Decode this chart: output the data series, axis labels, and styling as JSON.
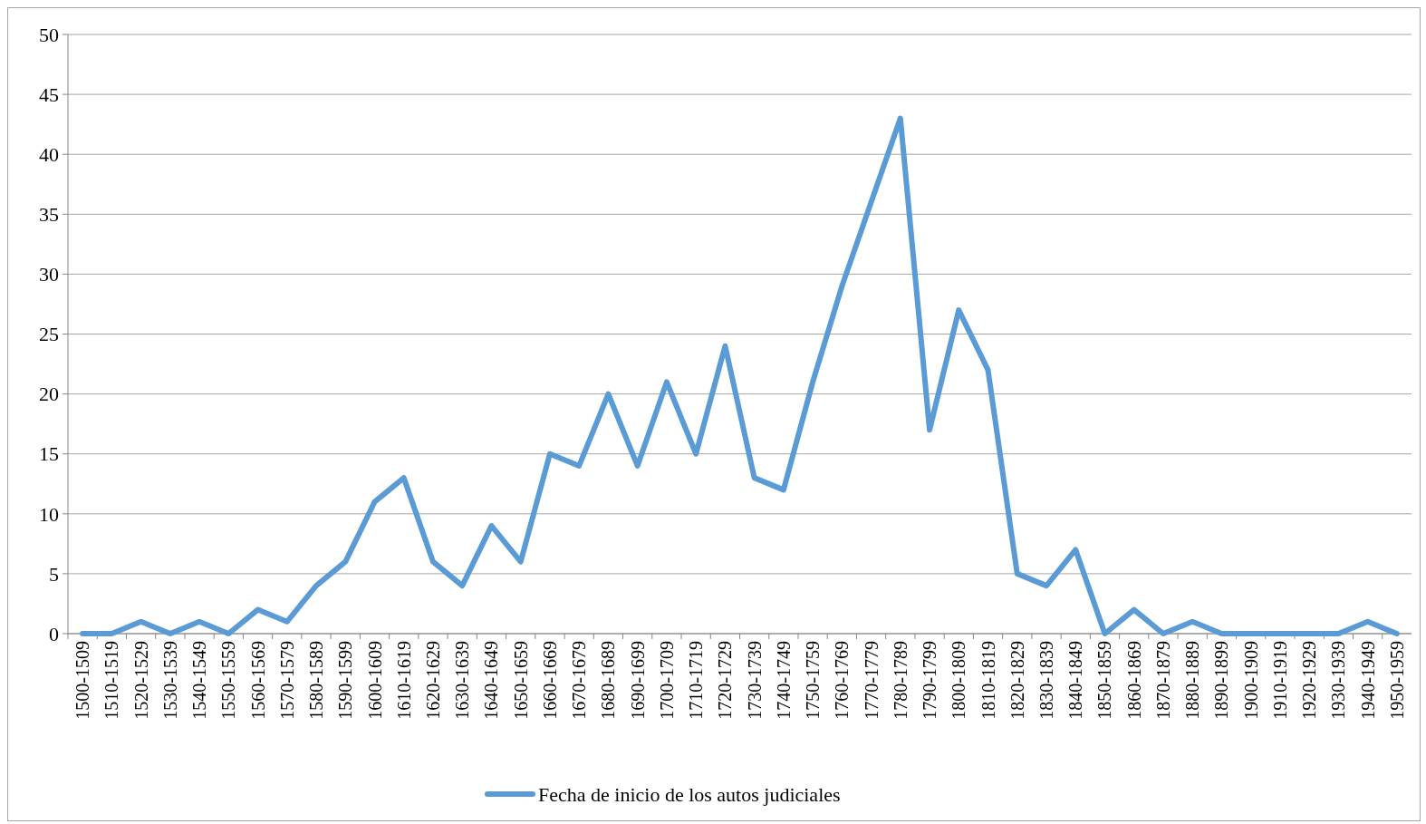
{
  "chart_data": {
    "type": "line",
    "categories": [
      "1500-1509",
      "1510-1519",
      "1520-1529",
      "1530-1539",
      "1540-1549",
      "1550-1559",
      "1560-1569",
      "1570-1579",
      "1580-1589",
      "1590-1599",
      "1600-1609",
      "1610-1619",
      "1620-1629",
      "1630-1639",
      "1640-1649",
      "1650-1659",
      "1660-1669",
      "1670-1679",
      "1680-1689",
      "1690-1699",
      "1700-1709",
      "1710-1719",
      "1720-1729",
      "1730-1739",
      "1740-1749",
      "1750-1759",
      "1760-1769",
      "1770-1779",
      "1780-1789",
      "1790-1799",
      "1800-1809",
      "1810-1819",
      "1820-1829",
      "1830-1839",
      "1840-1849",
      "1850-1859",
      "1860-1869",
      "1870-1879",
      "1880-1889",
      "1890-1899",
      "1900-1909",
      "1910-1919",
      "1920-1929",
      "1930-1939",
      "1940-1949",
      "1950-1959"
    ],
    "series": [
      {
        "name": "Fecha de inicio de los autos judiciales",
        "color": "#5b9bd5",
        "values": [
          0,
          0,
          1,
          0,
          1,
          0,
          2,
          1,
          4,
          6,
          11,
          13,
          6,
          4,
          9,
          6,
          15,
          14,
          20,
          14,
          21,
          15,
          24,
          13,
          12,
          21,
          29,
          36,
          43,
          17,
          27,
          22,
          5,
          4,
          7,
          0,
          2,
          0,
          1,
          0,
          0,
          0,
          0,
          0,
          1,
          0
        ]
      }
    ],
    "ylim": [
      0,
      50
    ],
    "yticks": [
      0,
      5,
      10,
      15,
      20,
      25,
      30,
      35,
      40,
      45,
      50
    ],
    "grid": "y",
    "legend": "bottom",
    "marker": "none",
    "line_style": "solid"
  }
}
